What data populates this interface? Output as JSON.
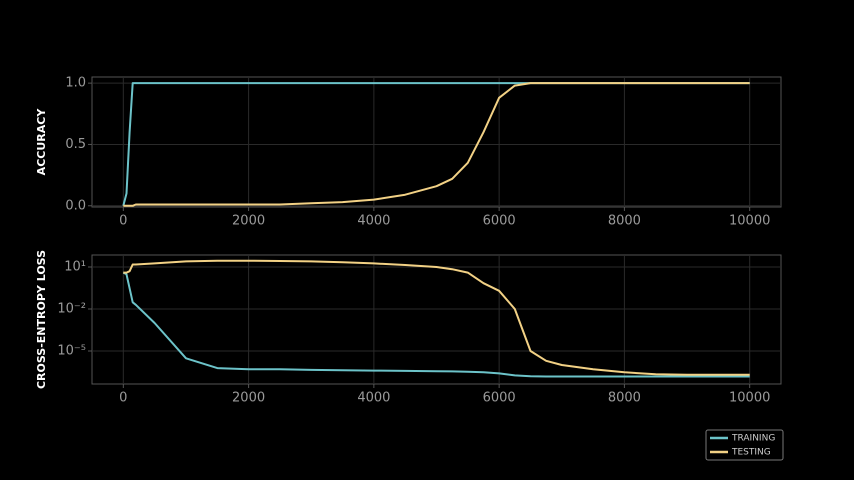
{
  "chart_data": [
    {
      "type": "line",
      "ylabel": "ACCURACY",
      "x": [
        0,
        50,
        100,
        150,
        200,
        500,
        1000,
        1500,
        2000,
        2500,
        3000,
        3500,
        4000,
        4500,
        5000,
        5250,
        5500,
        5750,
        6000,
        6250,
        6500,
        6750,
        7000,
        7500,
        8000,
        8500,
        9000,
        9500,
        10000
      ],
      "series": [
        {
          "color": "#6cc3c9",
          "values": [
            0,
            0.1,
            0.6,
            1,
            1,
            1,
            1,
            1,
            1,
            1,
            1,
            1,
            1,
            1,
            1,
            1,
            1,
            1,
            1,
            1,
            1,
            1,
            1,
            1,
            1,
            1,
            1,
            1,
            1
          ]
        },
        {
          "color": "#f2d185",
          "values": [
            0,
            0,
            0,
            0,
            0.01,
            0.01,
            0.01,
            0.01,
            0.01,
            0.01,
            0.02,
            0.03,
            0.05,
            0.09,
            0.16,
            0.22,
            0.35,
            0.6,
            0.88,
            0.98,
            1,
            1,
            1,
            1,
            1,
            1,
            1,
            1,
            1
          ]
        }
      ],
      "xlim": [
        -500,
        10500
      ],
      "xticks": [
        0,
        2000,
        4000,
        6000,
        8000,
        10000
      ],
      "ylim": [
        -0.01,
        1.05
      ],
      "yticks": [
        {
          "value": 0,
          "label": "0.0"
        },
        {
          "value": 0.5,
          "label": "0.5"
        },
        {
          "value": 1,
          "label": "1.0"
        }
      ],
      "grid": true
    },
    {
      "type": "line",
      "ylabel": "CROSS-ENTROPY LOSS",
      "log_y": true,
      "x": [
        0,
        50,
        100,
        150,
        200,
        500,
        1000,
        1500,
        2000,
        2500,
        3000,
        3500,
        4000,
        4500,
        5000,
        5250,
        5500,
        5750,
        6000,
        6250,
        6500,
        6750,
        7000,
        7500,
        8000,
        8500,
        9000,
        9500,
        10000
      ],
      "series": [
        {
          "name": "TRAINING",
          "color": "#6cc3c9",
          "values": [
            4,
            3,
            0.3,
            0.03,
            0.02,
            0.001,
            3e-06,
            6e-07,
            5e-07,
            5e-07,
            4.5e-07,
            4.2e-07,
            4e-07,
            3.8e-07,
            3.6e-07,
            3.5e-07,
            3.3e-07,
            3e-07,
            2.5e-07,
            1.8e-07,
            1.6e-07,
            1.5e-07,
            1.5e-07,
            1.5e-07,
            1.5e-07,
            1.5e-07,
            1.5e-07,
            1.5e-07,
            1.5e-07
          ]
        },
        {
          "name": "TESTING",
          "color": "#f2d185",
          "values": [
            4,
            4,
            5,
            15,
            15,
            18,
            25,
            28,
            28,
            27,
            25,
            22,
            18,
            14,
            10,
            7,
            4,
            0.7,
            0.2,
            0.01,
            1e-05,
            2e-06,
            1e-06,
            5e-07,
            3e-07,
            2.2e-07,
            2e-07,
            2e-07,
            2e-07
          ]
        }
      ],
      "xlim": [
        -500,
        10500
      ],
      "xticks": [
        0,
        2000,
        4000,
        6000,
        8000,
        10000
      ],
      "ylim": [
        4.4e-08,
        72
      ],
      "yticks": [
        {
          "value": 10,
          "label": "10¹"
        },
        {
          "value": 0.01,
          "label": "10⁻²"
        },
        {
          "value": 1e-05,
          "label": "10⁻⁵"
        }
      ],
      "grid": true,
      "legend": "lower right"
    }
  ]
}
